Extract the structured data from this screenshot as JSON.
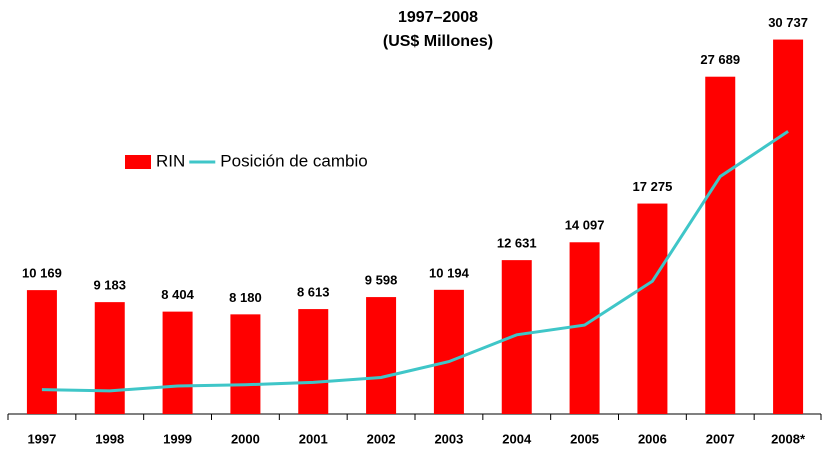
{
  "chart_data": {
    "type": "bar_line",
    "title": "1997–2008",
    "subtitle": "(US$ Millones)",
    "categories": [
      "1997",
      "1998",
      "1999",
      "2000",
      "2001",
      "2002",
      "2003",
      "2004",
      "2005",
      "2006",
      "2007",
      "2008*"
    ],
    "series": [
      {
        "name": "RIN",
        "type": "bar",
        "color": "#ff0000",
        "values": [
          10169,
          9183,
          8404,
          8180,
          8613,
          9598,
          10194,
          12631,
          14097,
          17275,
          27689,
          30737
        ],
        "value_labels": [
          "10 169",
          "9 183",
          "8 404",
          "8 180",
          "8 613",
          "9 598",
          "10 194",
          "12 631",
          "14 097",
          "17 275",
          "27 689",
          "30 737"
        ]
      },
      {
        "name": "Posición de cambio",
        "type": "line",
        "color": "#3fc6c8",
        "values": [
          2000,
          1900,
          2300,
          2400,
          2600,
          3000,
          4300,
          6500,
          7300,
          10900,
          19500,
          23200
        ]
      }
    ],
    "ylim": [
      0,
      33000
    ],
    "legend": "upper left"
  }
}
